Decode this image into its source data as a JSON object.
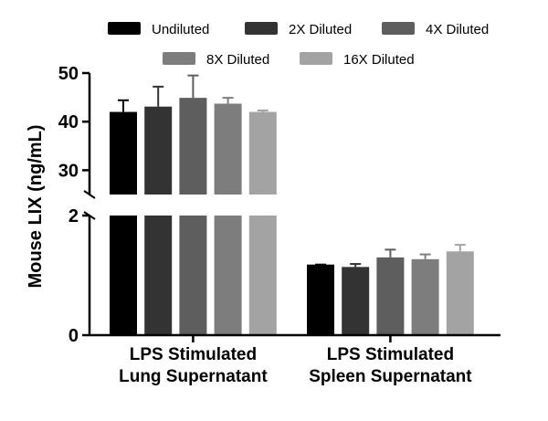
{
  "chart_data": {
    "type": "bar",
    "ylabel": "Mouse LIX (ng/mL)",
    "xlabel": "",
    "y_axis": {
      "broken": true,
      "lower_segment": {
        "range": [
          0,
          2
        ],
        "ticks": [
          0,
          2
        ]
      },
      "upper_segment": {
        "range": [
          25,
          50
        ],
        "ticks": [
          30,
          40,
          50
        ]
      }
    },
    "categories": [
      [
        "LPS Stimulated",
        "Lung Supernatant"
      ],
      [
        "LPS Stimulated",
        "Spleen Supernatant"
      ]
    ],
    "series": [
      {
        "name": "Undiluted",
        "color": "#000000",
        "values": [
          42.0,
          1.18
        ],
        "errors": [
          2.4,
          0.0
        ]
      },
      {
        "name": "2X Diluted",
        "color": "#333333",
        "values": [
          43.1,
          1.14
        ],
        "errors": [
          4.1,
          0.05
        ]
      },
      {
        "name": "4X Diluted",
        "color": "#5e5e5e",
        "values": [
          44.9,
          1.3
        ],
        "errors": [
          4.6,
          0.13
        ]
      },
      {
        "name": "8X Diluted",
        "color": "#7d7d7d",
        "values": [
          43.7,
          1.27
        ],
        "errors": [
          1.2,
          0.08
        ]
      },
      {
        "name": "16X Diluted",
        "color": "#a3a3a3",
        "values": [
          42.0,
          1.4
        ],
        "errors": [
          0.3,
          0.11
        ]
      }
    ],
    "legend_position": "top",
    "grid": false
  }
}
